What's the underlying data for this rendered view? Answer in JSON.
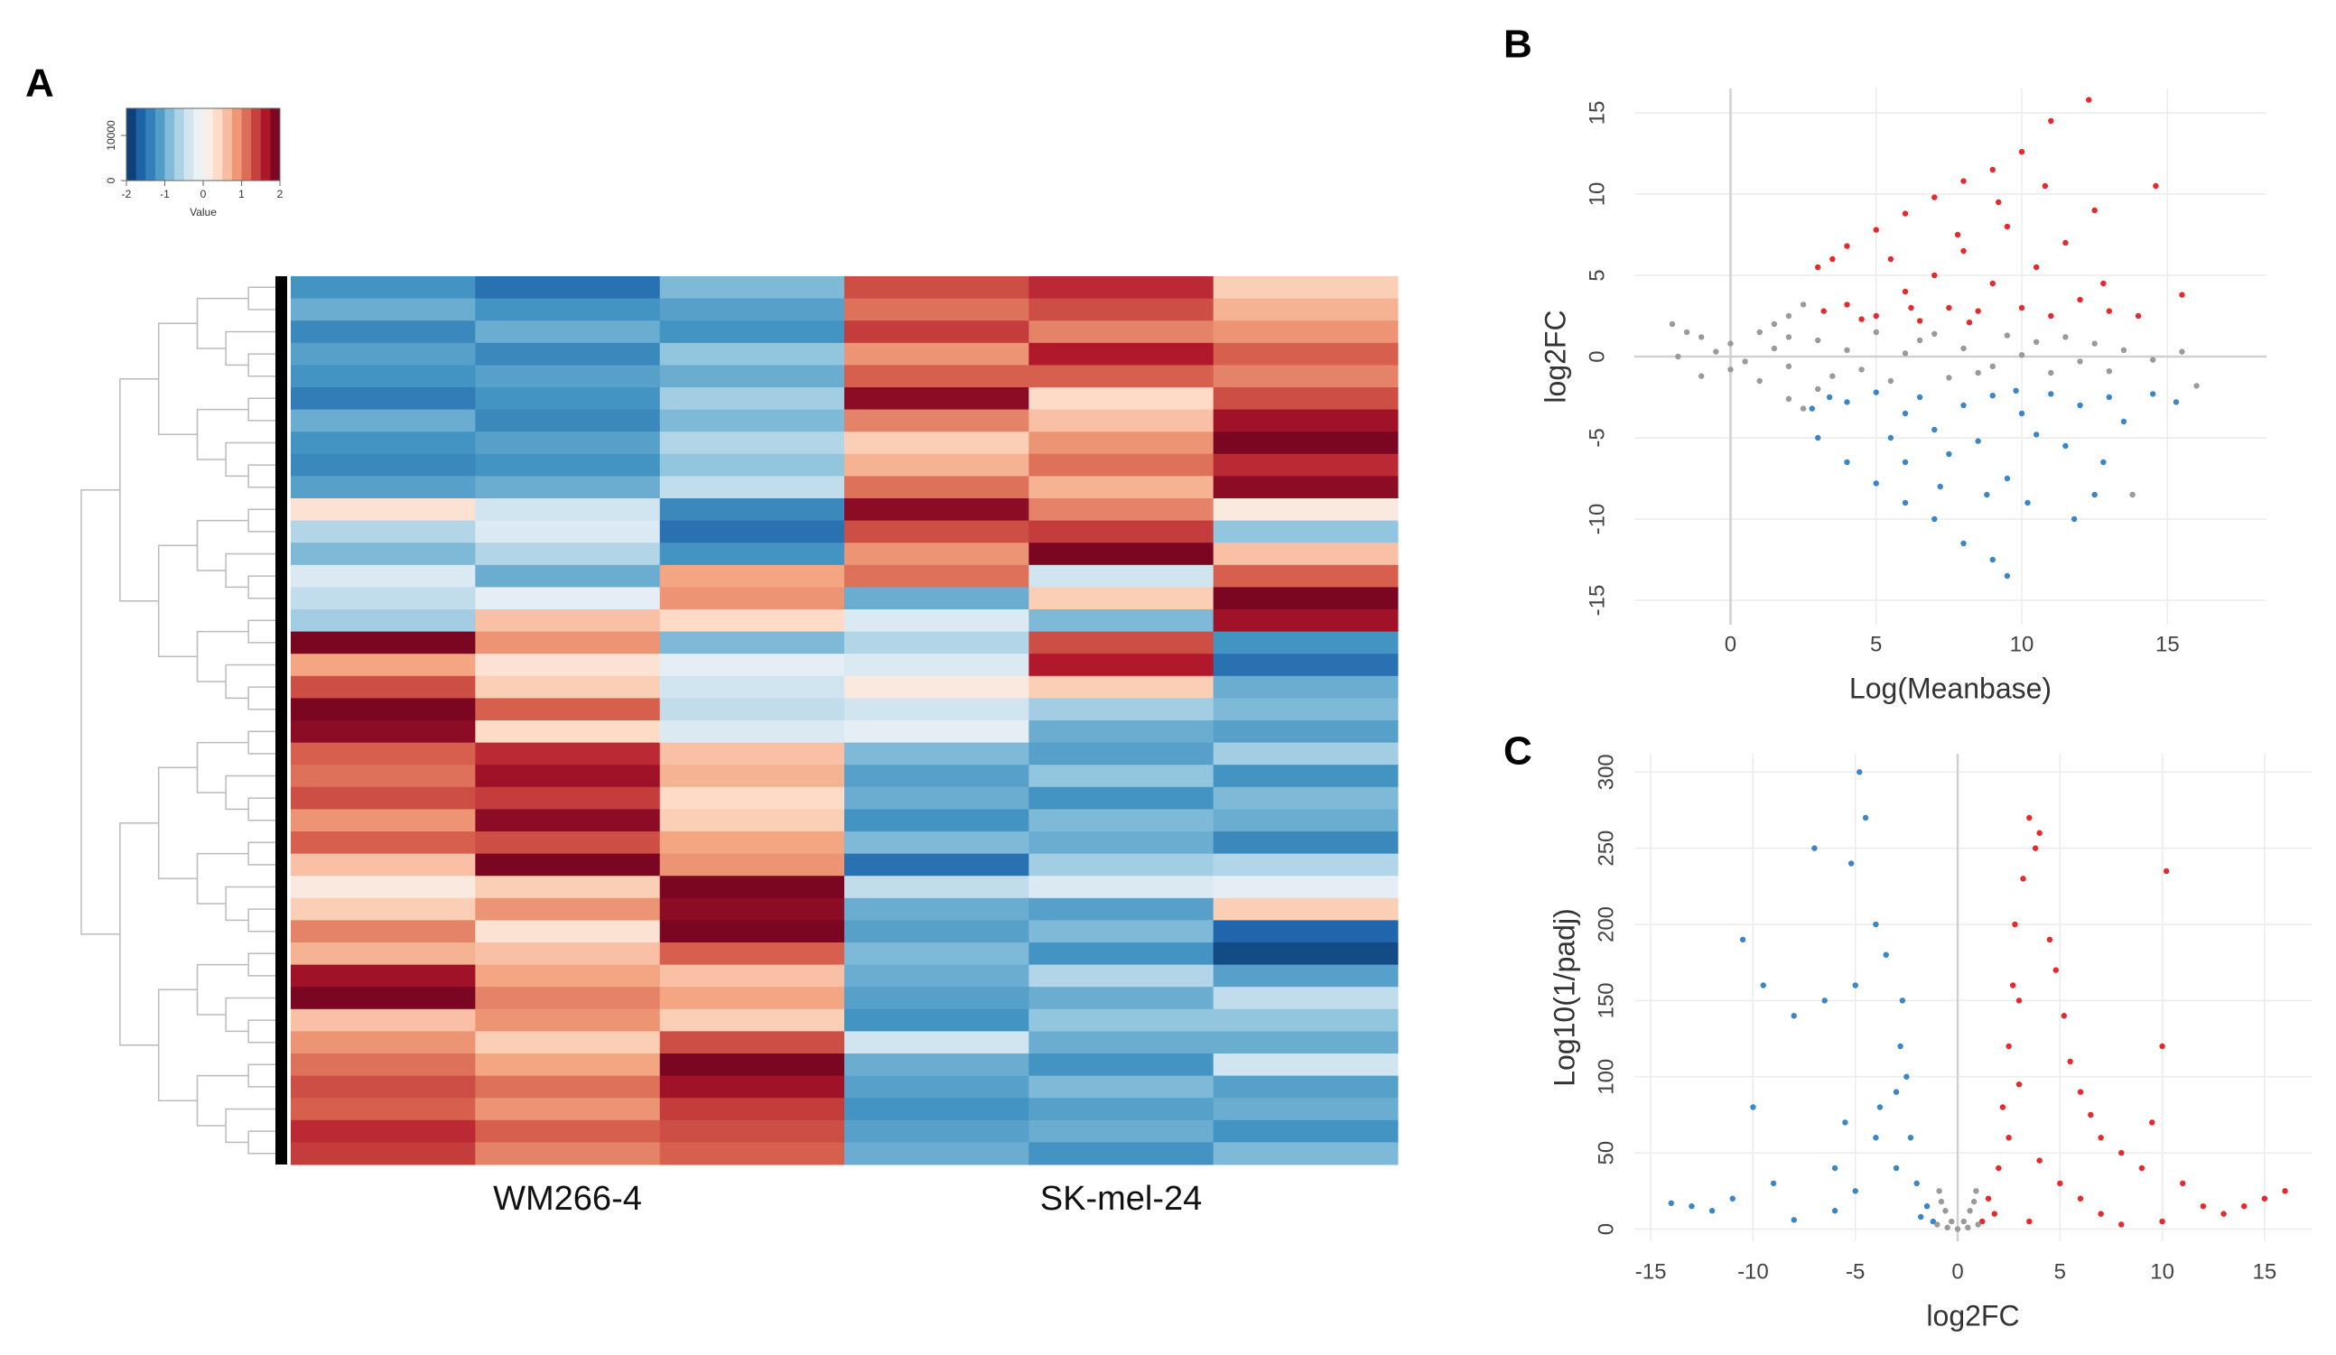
{
  "chart_data": [
    {
      "type": "heatmap",
      "panel": "A",
      "categories": [
        null,
        "WM266-4",
        null,
        null,
        "SK-mel-24",
        null
      ],
      "colorscale": [
        "#053061",
        "#2166ac",
        "#4393c3",
        "#92c5de",
        "#d1e5f0",
        "#f7f7f7",
        "#fddbc7",
        "#f4a582",
        "#d6604d",
        "#b2182b",
        "#67001f"
      ],
      "colorbar": {
        "label": "Value",
        "lim": [
          -2,
          2
        ],
        "ticks": [
          -2,
          -1,
          0,
          1,
          2
        ],
        "count_lim": [
          0,
          16000
        ],
        "count_ticks": [
          0,
          10000
        ]
      },
      "values": [
        [
          -1.2,
          -1.5,
          -0.9,
          1.3,
          1.5,
          0.5
        ],
        [
          -1.0,
          -1.2,
          -1.1,
          1.1,
          1.3,
          0.7
        ],
        [
          -1.3,
          -1.0,
          -1.2,
          1.4,
          1.0,
          0.9
        ],
        [
          -1.1,
          -1.3,
          -0.8,
          0.9,
          1.6,
          1.2
        ],
        [
          -1.2,
          -1.1,
          -1.0,
          1.2,
          1.2,
          1.0
        ],
        [
          -1.4,
          -1.2,
          -0.7,
          1.8,
          0.4,
          1.3
        ],
        [
          -1.0,
          -1.3,
          -0.9,
          1.0,
          0.6,
          1.7
        ],
        [
          -1.2,
          -1.1,
          -0.6,
          0.5,
          0.9,
          1.9
        ],
        [
          -1.3,
          -1.2,
          -0.8,
          0.7,
          1.1,
          1.5
        ],
        [
          -1.1,
          -1.0,
          -0.5,
          1.1,
          0.7,
          1.8
        ],
        [
          0.3,
          -0.4,
          -1.3,
          1.8,
          1.0,
          0.2
        ],
        [
          -0.6,
          -0.3,
          -1.5,
          1.3,
          1.4,
          -0.8
        ],
        [
          -0.9,
          -0.6,
          -1.2,
          0.9,
          1.9,
          0.6
        ],
        [
          -0.3,
          -1.0,
          0.8,
          1.1,
          -0.4,
          1.2
        ],
        [
          -0.5,
          -0.2,
          0.9,
          -1.0,
          0.5,
          1.9
        ],
        [
          -0.7,
          0.6,
          0.4,
          -0.3,
          -0.9,
          1.7
        ],
        [
          1.9,
          0.9,
          -0.9,
          -0.6,
          1.3,
          -1.2
        ],
        [
          0.8,
          0.3,
          -0.2,
          -0.3,
          1.6,
          -1.5
        ],
        [
          1.3,
          0.5,
          -0.4,
          0.2,
          0.5,
          -1.0
        ],
        [
          1.9,
          1.2,
          -0.5,
          -0.4,
          -0.7,
          -0.9
        ],
        [
          1.8,
          0.4,
          -0.3,
          -0.2,
          -1.0,
          -1.1
        ],
        [
          1.2,
          1.5,
          0.6,
          -0.9,
          -1.1,
          -0.7
        ],
        [
          1.1,
          1.7,
          0.7,
          -1.1,
          -0.8,
          -1.2
        ],
        [
          1.3,
          1.4,
          0.4,
          -1.0,
          -1.2,
          -0.9
        ],
        [
          0.9,
          1.8,
          0.5,
          -1.2,
          -0.9,
          -1.0
        ],
        [
          1.2,
          1.3,
          0.8,
          -0.9,
          -1.0,
          -1.3
        ],
        [
          0.6,
          1.9,
          0.9,
          -1.5,
          -0.7,
          -0.6
        ],
        [
          0.2,
          0.5,
          1.9,
          -0.5,
          -0.3,
          -0.2
        ],
        [
          0.5,
          0.9,
          1.8,
          -1.0,
          -1.1,
          0.5
        ],
        [
          1.0,
          0.3,
          1.9,
          -1.1,
          -0.9,
          -1.6
        ],
        [
          0.7,
          0.6,
          1.2,
          -0.9,
          -1.2,
          -1.8
        ],
        [
          1.7,
          0.8,
          0.6,
          -1.0,
          -0.6,
          -1.1
        ],
        [
          1.9,
          1.0,
          0.8,
          -1.1,
          -1.0,
          -0.5
        ],
        [
          0.6,
          0.9,
          0.5,
          -1.2,
          -0.8,
          -0.8
        ],
        [
          0.9,
          0.5,
          1.3,
          -0.4,
          -1.0,
          -1.0
        ],
        [
          1.1,
          0.8,
          1.9,
          -1.0,
          -1.2,
          -0.4
        ],
        [
          1.3,
          1.1,
          1.7,
          -1.1,
          -0.9,
          -1.1
        ],
        [
          1.2,
          0.9,
          1.4,
          -1.2,
          -1.1,
          -1.0
        ],
        [
          1.5,
          1.2,
          1.3,
          -1.1,
          -1.0,
          -1.2
        ],
        [
          1.4,
          1.0,
          1.2,
          -1.0,
          -1.2,
          -0.9
        ]
      ]
    },
    {
      "type": "scatter",
      "panel": "B",
      "xlabel": "Log(Meanbase)",
      "ylabel": "log2FC",
      "xlim": [
        -3.3,
        18.4
      ],
      "ylim": [
        -16.5,
        16.5
      ],
      "xticks": [
        0,
        5,
        10,
        15
      ],
      "yticks": [
        -15,
        -10,
        -5,
        0,
        5,
        10,
        15
      ],
      "grid": true,
      "hline": 0,
      "vline": 0,
      "series": [
        {
          "color": "#e8292c",
          "x": [
            3,
            3.5,
            4,
            5,
            6,
            7,
            8,
            9,
            10,
            11,
            12.3,
            4,
            5,
            6,
            6.5,
            7,
            7.5,
            8,
            8.5,
            9,
            9.5,
            10,
            10.5,
            11,
            11.5,
            12,
            12.5,
            13,
            14.6,
            15.5,
            5.5,
            7.8,
            9.2,
            10.8,
            4.5,
            3.2,
            6.2,
            12.8,
            14,
            8.2
          ],
          "values": [
            5.5,
            6,
            6.8,
            7.8,
            8.8,
            9.8,
            10.8,
            11.5,
            12.6,
            14.5,
            15.8,
            3.2,
            2.5,
            4,
            2.2,
            5,
            3,
            6.5,
            2.8,
            4.5,
            8,
            3,
            5.5,
            2.5,
            7,
            3.5,
            9,
            2.8,
            10.5,
            3.8,
            6,
            7.5,
            9.5,
            10.5,
            2.3,
            2.8,
            3,
            4.5,
            2.5,
            2.1
          ]
        },
        {
          "color": "#3a86c8",
          "x": [
            3,
            4,
            5,
            6,
            7,
            8,
            9,
            9.5,
            4,
            5,
            6,
            6.5,
            7,
            7.5,
            8,
            8.5,
            9,
            9.5,
            10,
            10.5,
            11,
            11.5,
            12,
            12.5,
            13,
            13.5,
            14.5,
            15.3,
            5.5,
            7.2,
            10.2,
            11.8,
            3.4,
            8.8,
            12.8,
            6,
            9.8,
            2.8
          ],
          "values": [
            -5,
            -6.5,
            -7.8,
            -9,
            -10,
            -11.5,
            -12.5,
            -13.5,
            -2.8,
            -2.2,
            -3.5,
            -2.5,
            -4.5,
            -6,
            -3,
            -5.2,
            -2.4,
            -7.5,
            -3.5,
            -4.8,
            -2.3,
            -5.5,
            -3,
            -8.5,
            -2.5,
            -4,
            -2.3,
            -2.8,
            -5,
            -8,
            -9,
            -10,
            -2.5,
            -8.5,
            -6.5,
            -6.5,
            -2.1,
            -3.2
          ]
        },
        {
          "color": "#9a9a9a",
          "x": [
            -2,
            -1.5,
            -1,
            0,
            1,
            2,
            2.5,
            -1,
            0,
            1,
            2,
            2.5,
            -1.8,
            -0.5,
            0.5,
            1.5,
            2,
            3,
            3.5,
            4,
            5,
            5.5,
            6,
            7,
            7.5,
            8,
            9,
            9.5,
            10,
            11,
            11.5,
            12,
            12.5,
            13,
            13.5,
            14.5,
            15.5,
            16,
            13.8,
            1.5,
            2,
            3,
            4.5,
            6.5,
            8.5,
            10.5
          ],
          "values": [
            2,
            1.5,
            1.2,
            0.8,
            1.5,
            2.5,
            3.2,
            -1.2,
            -0.8,
            -1.5,
            -2.6,
            -3.2,
            0,
            0.3,
            -0.3,
            0.5,
            -0.6,
            1,
            -1.2,
            0.4,
            1.5,
            -1.5,
            0.2,
            1.4,
            -1.3,
            0.5,
            -0.6,
            1.3,
            0.1,
            -1,
            1.2,
            -0.3,
            0.8,
            -0.9,
            0.4,
            -0.2,
            0.3,
            -1.8,
            -8.5,
            2,
            1.2,
            -2,
            -0.8,
            1,
            -1,
            0.9
          ]
        }
      ]
    },
    {
      "type": "scatter",
      "panel": "C",
      "xlabel": "log2FC",
      "ylabel": "Log10(1/padj)",
      "xlim": [
        -15.8,
        17.3
      ],
      "ylim": [
        -8,
        312
      ],
      "xticks": [
        -15,
        -10,
        -5,
        0,
        5,
        10,
        15
      ],
      "yticks": [
        0,
        50,
        100,
        150,
        200,
        250,
        300
      ],
      "grid": true,
      "vline": 0,
      "series": [
        {
          "color": "#e8292c",
          "x": [
            1.2,
            1.5,
            2,
            2.2,
            2.5,
            2.8,
            3,
            3.2,
            3.5,
            3.8,
            4,
            4.5,
            4.8,
            5.2,
            5.5,
            6,
            6.5,
            7,
            8,
            9,
            9.5,
            10,
            10.2,
            11,
            12,
            13,
            14,
            15,
            16,
            2.5,
            3,
            4,
            5,
            6,
            7,
            1.8,
            3.5,
            8,
            10,
            2.7
          ],
          "values": [
            5,
            20,
            40,
            80,
            120,
            200,
            150,
            230,
            270,
            250,
            260,
            190,
            170,
            140,
            110,
            90,
            75,
            60,
            50,
            40,
            70,
            120,
            235,
            30,
            15,
            10,
            15,
            20,
            25,
            60,
            95,
            45,
            30,
            20,
            10,
            10,
            5,
            3,
            5,
            160
          ]
        },
        {
          "color": "#3a86c8",
          "x": [
            -1.2,
            -1.5,
            -2,
            -2.3,
            -2.5,
            -2.8,
            -3,
            -3.5,
            -4,
            -4.5,
            -4.8,
            -5,
            -5.2,
            -5.5,
            -6,
            -6.5,
            -7,
            -8,
            -9,
            -10,
            -10.5,
            -11,
            -12,
            -13,
            -14,
            -4,
            -3,
            -5,
            -6,
            -8,
            -2.7,
            -3.8,
            -1.8,
            -9.5
          ],
          "values": [
            5,
            15,
            30,
            60,
            100,
            120,
            90,
            180,
            200,
            270,
            300,
            160,
            240,
            70,
            40,
            150,
            250,
            140,
            30,
            80,
            190,
            20,
            12,
            15,
            17,
            60,
            40,
            25,
            12,
            6,
            150,
            80,
            8,
            160
          ]
        },
        {
          "color": "#9a9a9a",
          "x": [
            0,
            -0.3,
            0.3,
            -0.6,
            0.6,
            -0.9,
            0.9,
            -1,
            1,
            -0.5,
            0.5,
            -0.8,
            0.8
          ],
          "values": [
            0,
            5,
            5,
            12,
            12,
            25,
            25,
            3,
            3,
            1,
            1,
            18,
            18
          ]
        }
      ]
    }
  ]
}
